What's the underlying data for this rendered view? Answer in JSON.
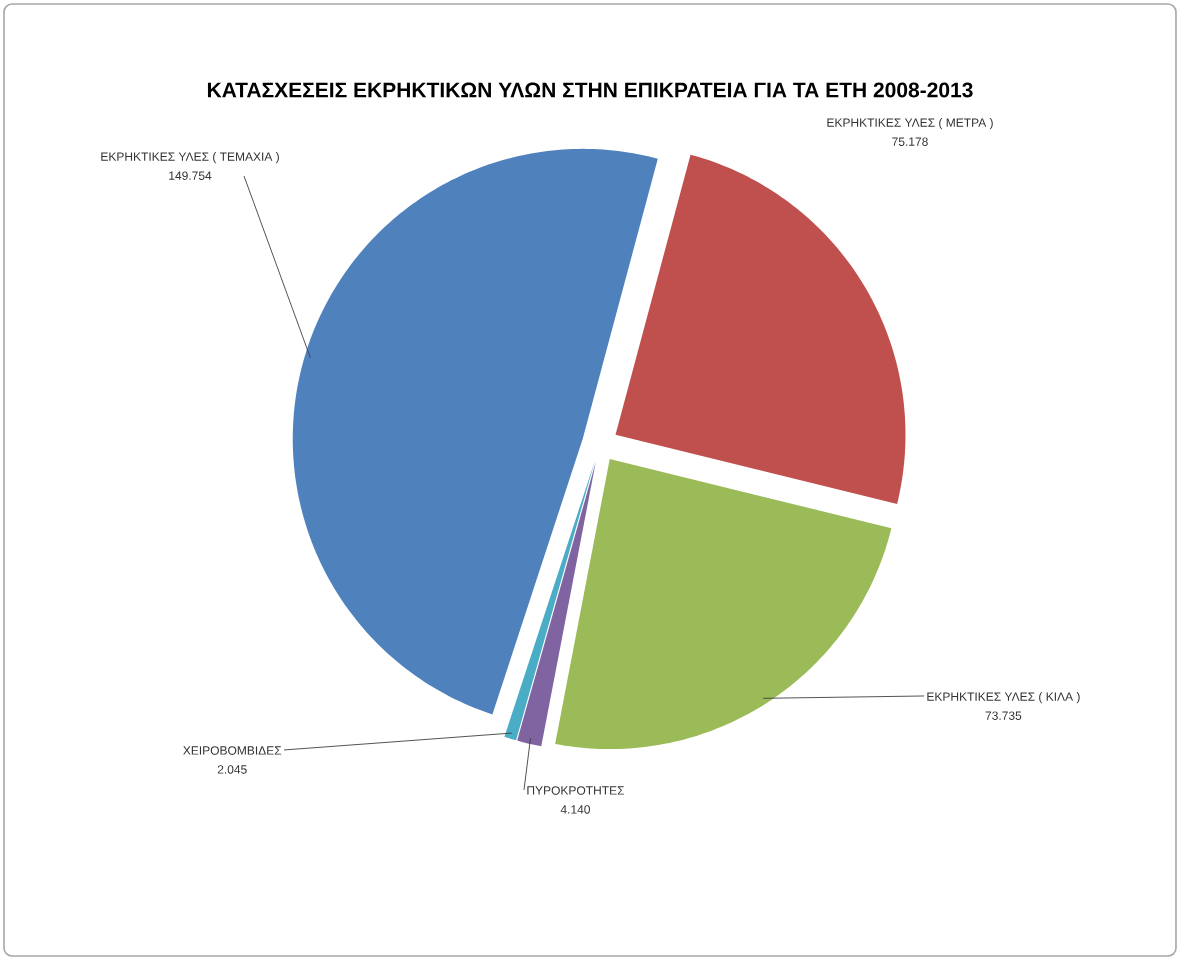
{
  "chart_data": {
    "type": "pie",
    "title": "ΚΑΤΑΣΧΕΣΕΙΣ ΕΚΡΗΚΤΙΚΩΝ ΥΛΩΝ ΣΤΗΝ ΕΠΙΚΡΑΤΕΙΑ ΓΙΑ ΤΑ ΕΤΗ 2008-2013",
    "categories": [
      "ΕΚΡΗΚΤΙΚΕΣ ΥΛΕΣ ( ΜΕΤΡΑ )",
      "ΕΚΡΗΚΤΙΚΕΣ ΥΛΕΣ ( ΚΙΛΑ )",
      "ΠΥΡΟΚΡΟΤΗΤΕΣ",
      "ΧΕΙΡΟΒΟΜΒΙΔΕΣ",
      "ΕΚΡΗΚΤΙΚΕΣ ΥΛΕΣ ( ΤΕΜΑΧΙΑ )"
    ],
    "values": [
      75178,
      73735,
      4140,
      2045,
      149754
    ],
    "value_labels": [
      "75.178",
      "73.735",
      "4.140",
      "2.045",
      "149.754"
    ],
    "colors": [
      "#c0504d",
      "#9bbb59",
      "#8064a2",
      "#4bacc6",
      "#4f81bd"
    ]
  }
}
